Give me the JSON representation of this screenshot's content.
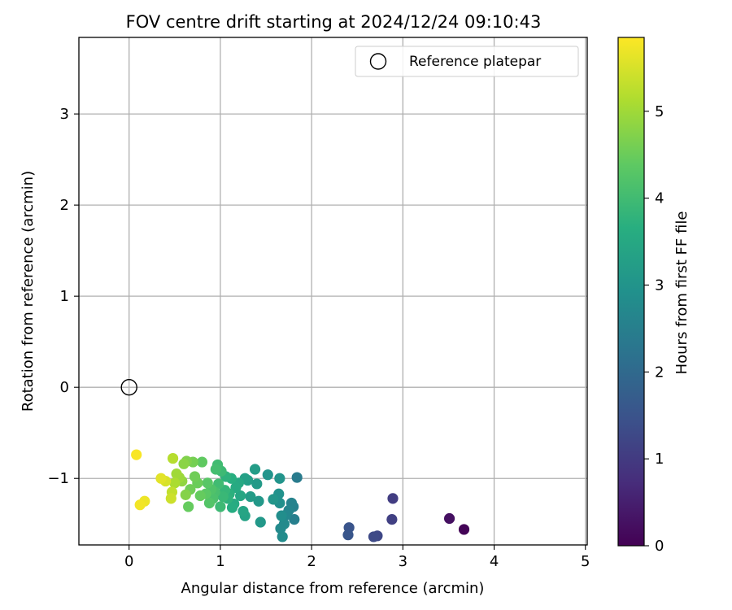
{
  "chart_data": {
    "type": "scatter",
    "title": "FOV centre drift starting at 2024/12/24 09:10:43",
    "xlabel": "Angular distance from reference (arcmin)",
    "ylabel": "Rotation from reference (arcmin)",
    "xlim": [
      -0.55,
      5.02
    ],
    "ylim": [
      -1.73,
      3.84
    ],
    "xticks": [
      0,
      1,
      2,
      3,
      4,
      5
    ],
    "yticks": [
      -1,
      0,
      1,
      2,
      3
    ],
    "xtick_labels": [
      "0",
      "1",
      "2",
      "3",
      "4",
      "5"
    ],
    "ytick_labels": [
      "−1",
      "0",
      "1",
      "2",
      "3"
    ],
    "grid": true,
    "legend": {
      "position": "top-right",
      "label": "Reference platepar"
    },
    "reference_point": {
      "x": 0.0,
      "y": 0.0
    },
    "colorbar": {
      "label": "Hours from first FF file",
      "range": [
        0,
        5.85
      ],
      "ticks": [
        0,
        1,
        2,
        3,
        4,
        5
      ],
      "tick_labels": [
        "0",
        "1",
        "2",
        "3",
        "4",
        "5"
      ],
      "colormap": "viridis"
    },
    "points": [
      [
        3.67,
        -1.56,
        0.05
      ],
      [
        3.51,
        -1.44,
        0.25
      ],
      [
        2.89,
        -1.22,
        1.05
      ],
      [
        2.88,
        -1.45,
        1.1
      ],
      [
        2.72,
        -1.63,
        1.25
      ],
      [
        2.68,
        -1.64,
        1.3
      ],
      [
        2.41,
        -1.54,
        1.5
      ],
      [
        2.4,
        -1.62,
        1.55
      ],
      [
        1.84,
        -0.99,
        2.4
      ],
      [
        1.81,
        -1.45,
        2.5
      ],
      [
        1.8,
        -1.31,
        2.55
      ],
      [
        1.78,
        -1.27,
        2.6
      ],
      [
        1.75,
        -1.35,
        2.65
      ],
      [
        1.72,
        -1.4,
        2.7
      ],
      [
        1.7,
        -1.5,
        2.75
      ],
      [
        1.68,
        -1.64,
        2.8
      ],
      [
        1.66,
        -1.55,
        2.75
      ],
      [
        1.67,
        -1.41,
        2.85
      ],
      [
        1.65,
        -1.27,
        2.9
      ],
      [
        1.64,
        -1.17,
        2.95
      ],
      [
        1.65,
        -1.0,
        3.0
      ],
      [
        1.58,
        -1.23,
        3.05
      ],
      [
        1.52,
        -0.96,
        3.0
      ],
      [
        1.44,
        -1.48,
        3.1
      ],
      [
        1.42,
        -1.25,
        3.1
      ],
      [
        1.4,
        -1.06,
        3.15
      ],
      [
        1.38,
        -0.9,
        3.2
      ],
      [
        1.33,
        -1.2,
        3.2
      ],
      [
        1.3,
        -1.02,
        3.25
      ],
      [
        1.27,
        -1.0,
        3.3
      ],
      [
        1.27,
        -1.41,
        3.35
      ],
      [
        1.25,
        -1.36,
        3.4
      ],
      [
        1.22,
        -1.19,
        3.45
      ],
      [
        1.2,
        -1.05,
        3.5
      ],
      [
        1.17,
        -1.1,
        3.55
      ],
      [
        1.15,
        -1.28,
        3.55
      ],
      [
        1.13,
        -1.32,
        3.6
      ],
      [
        1.12,
        -1.0,
        3.65
      ],
      [
        1.1,
        -1.17,
        3.7
      ],
      [
        1.08,
        -1.22,
        3.75
      ],
      [
        1.06,
        -0.98,
        3.75
      ],
      [
        1.05,
        -1.13,
        3.85
      ],
      [
        1.03,
        -1.2,
        3.9
      ],
      [
        1.01,
        -0.92,
        3.95
      ],
      [
        1.0,
        -1.31,
        3.95
      ],
      [
        0.98,
        -1.06,
        4.0
      ],
      [
        0.97,
        -0.85,
        4.0
      ],
      [
        0.95,
        -0.9,
        4.05
      ],
      [
        0.94,
        -1.15,
        4.1
      ],
      [
        0.92,
        -1.22,
        4.15
      ],
      [
        0.9,
        -1.12,
        4.2
      ],
      [
        0.88,
        -1.27,
        4.25
      ],
      [
        0.86,
        -1.05,
        4.3
      ],
      [
        0.84,
        -1.17,
        4.35
      ],
      [
        0.8,
        -0.82,
        4.4
      ],
      [
        0.78,
        -1.19,
        4.45
      ],
      [
        0.75,
        -1.05,
        4.5
      ],
      [
        0.72,
        -0.98,
        4.55
      ],
      [
        0.7,
        -0.82,
        4.6
      ],
      [
        0.67,
        -1.12,
        4.55
      ],
      [
        0.65,
        -1.31,
        4.45
      ],
      [
        0.63,
        -0.81,
        4.7
      ],
      [
        0.62,
        -1.18,
        4.75
      ],
      [
        0.6,
        -0.84,
        4.8
      ],
      [
        0.58,
        -1.03,
        4.85
      ],
      [
        0.55,
        -0.99,
        4.95
      ],
      [
        0.52,
        -0.95,
        5.0
      ],
      [
        0.5,
        -1.05,
        5.1
      ],
      [
        0.48,
        -0.78,
        5.2
      ],
      [
        0.47,
        -1.15,
        5.3
      ],
      [
        0.46,
        -1.22,
        5.4
      ],
      [
        0.4,
        -1.03,
        5.5
      ],
      [
        0.35,
        -1.0,
        5.6
      ],
      [
        0.17,
        -1.25,
        5.7
      ],
      [
        0.12,
        -1.29,
        5.75
      ],
      [
        0.08,
        -0.74,
        5.8
      ]
    ]
  }
}
